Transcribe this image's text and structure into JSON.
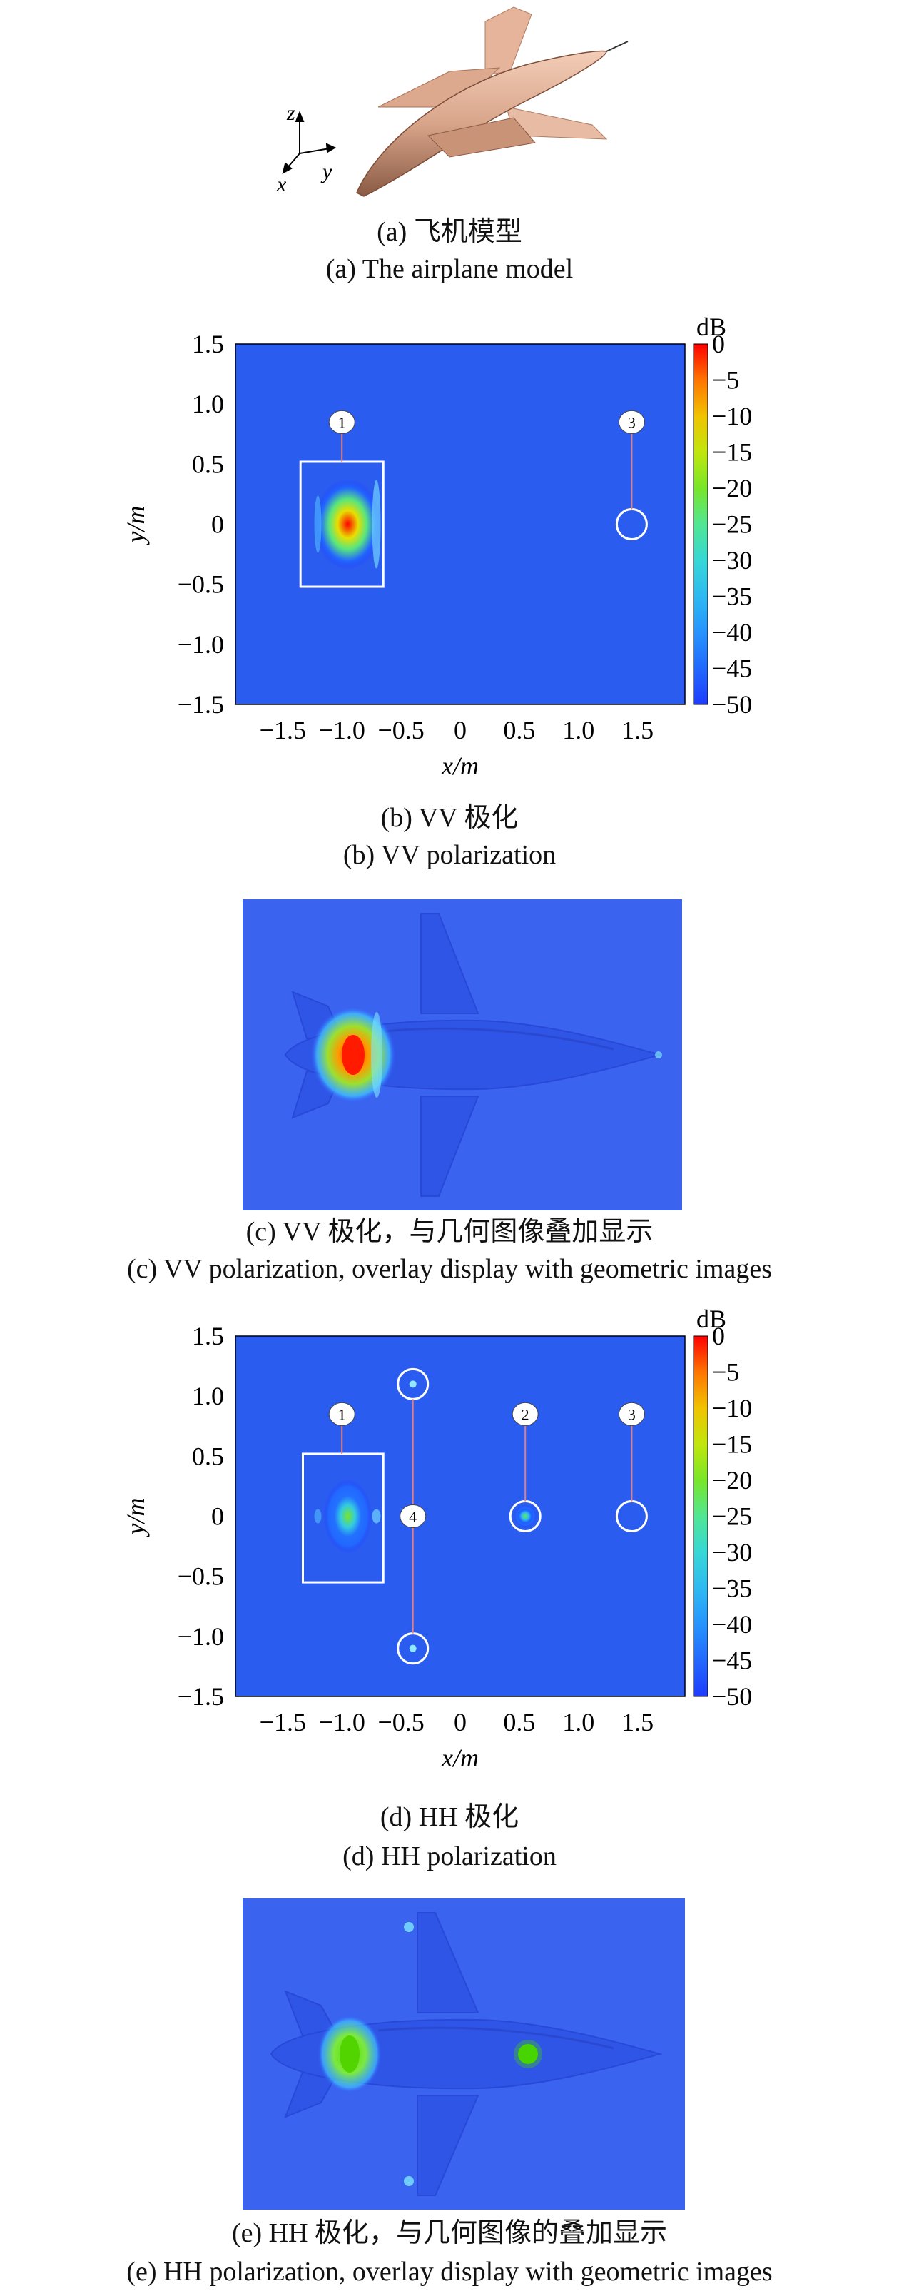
{
  "figure": {
    "a": {
      "caption_cn": "(a) 飞机模型",
      "caption_en": "(a) The airplane model",
      "axes": {
        "z": "z",
        "x": "x",
        "y": "y"
      }
    },
    "b": {
      "caption_cn": "(b) VV 极化",
      "caption_en": "(b) VV polarization"
    },
    "c": {
      "caption_cn": "(c) VV 极化，与几何图像叠加显示",
      "caption_en": "(c) VV polarization, overlay display with geometric images"
    },
    "d": {
      "caption_cn": "(d) HH 极化",
      "caption_en": "(d) HH polarization"
    },
    "e": {
      "caption_cn": "(e) HH 极化，与几何图像的叠加显示",
      "caption_en": "(e) HH polarization, overlay display with geometric images"
    }
  },
  "chart_data": [
    {
      "type": "heatmap",
      "panel": "b",
      "xlabel": "x/m",
      "ylabel": "y/m",
      "xlim": [
        -1.9,
        1.9
      ],
      "ylim": [
        -1.5,
        1.5
      ],
      "x_ticks": [
        "−1.5",
        "−1.0",
        "−0.5",
        "0",
        "0.5",
        "1.0",
        "1.5"
      ],
      "x_tick_values": [
        -1.5,
        -1.0,
        -0.5,
        0,
        0.5,
        1.0,
        1.5
      ],
      "y_ticks": [
        "1.5",
        "1.0",
        "0.5",
        "0",
        "−0.5",
        "−1.0",
        "−1.5"
      ],
      "y_tick_values": [
        1.5,
        1.0,
        0.5,
        0,
        -0.5,
        -1.0,
        -1.5
      ],
      "colorbar": {
        "unit": "dB",
        "range": [
          -50,
          0
        ],
        "ticks": [
          "0",
          "−5",
          "−10",
          "−15",
          "−20",
          "−25",
          "−30",
          "−35",
          "−40",
          "−45",
          "−50"
        ]
      },
      "markers": [
        {
          "label": "1",
          "x": -1.0,
          "y": 0.85,
          "target": "box",
          "box": {
            "x0": -1.35,
            "x1": -0.65,
            "y0": -0.52,
            "y1": 0.52
          }
        },
        {
          "label": "3",
          "x": 1.45,
          "y": 0.85,
          "target": "circle",
          "cx": 1.45,
          "cy": 0.0
        }
      ],
      "hotspots": [
        {
          "x": -0.95,
          "y": 0.0,
          "peak_db": 0
        }
      ]
    },
    {
      "type": "heatmap",
      "panel": "d",
      "xlabel": "x/m",
      "ylabel": "y/m",
      "xlim": [
        -1.9,
        1.9
      ],
      "ylim": [
        -1.5,
        1.5
      ],
      "x_ticks": [
        "−1.5",
        "−1.0",
        "−0.5",
        "0",
        "0.5",
        "1.0",
        "1.5"
      ],
      "x_tick_values": [
        -1.5,
        -1.0,
        -0.5,
        0,
        0.5,
        1.0,
        1.5
      ],
      "y_ticks": [
        "1.5",
        "1.0",
        "0.5",
        "0",
        "−0.5",
        "−1.0",
        "−1.5"
      ],
      "y_tick_values": [
        1.5,
        1.0,
        0.5,
        0,
        -0.5,
        -1.0,
        -1.5
      ],
      "colorbar": {
        "unit": "dB",
        "range": [
          -50,
          0
        ],
        "ticks": [
          "0",
          "−5",
          "−10",
          "−15",
          "−20",
          "−25",
          "−30",
          "−35",
          "−40",
          "−45",
          "−50"
        ]
      },
      "markers": [
        {
          "label": "1",
          "x": -1.0,
          "y": 0.85,
          "target": "box",
          "box": {
            "x0": -1.33,
            "x1": -0.65,
            "y0": -0.55,
            "y1": 0.52
          }
        },
        {
          "label": "2",
          "x": 0.55,
          "y": 0.85,
          "target": "circle",
          "cx": 0.55,
          "cy": 0.0
        },
        {
          "label": "3",
          "x": 1.45,
          "y": 0.85,
          "target": "circle",
          "cx": 1.45,
          "cy": 0.0
        },
        {
          "label": "4",
          "x": -0.4,
          "y": 0.0,
          "target": "circle-pair",
          "circles": [
            {
              "cx": -0.4,
              "cy": 1.1
            },
            {
              "cx": -0.4,
              "cy": -1.1
            }
          ]
        }
      ],
      "hotspots": [
        {
          "x": -0.95,
          "y": 0.0,
          "peak_db": -20
        },
        {
          "x": 0.55,
          "y": 0.0,
          "peak_db": -22
        }
      ]
    }
  ]
}
